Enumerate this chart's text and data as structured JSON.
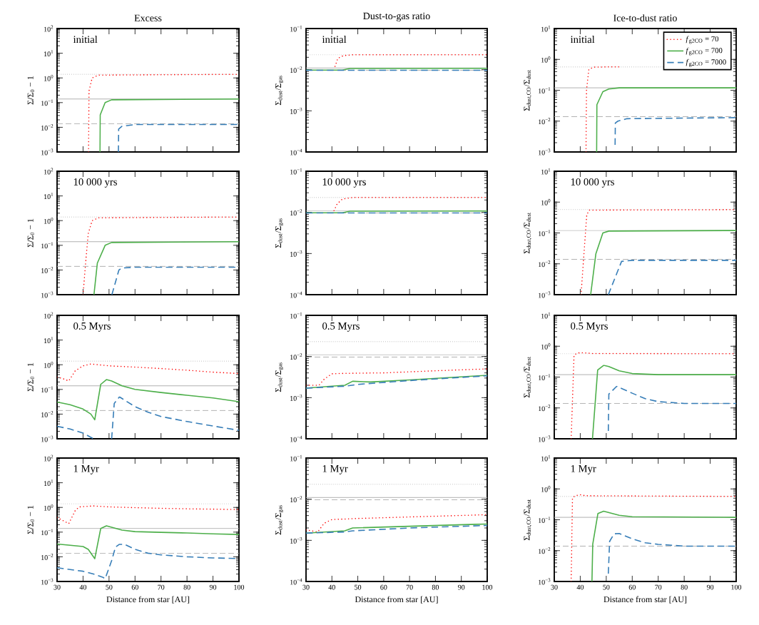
{
  "chart_data": [
    {
      "type": "line",
      "title": "Excess",
      "ylabel": "Σ/Σ$_{0}$ − 1",
      "annotations": [
        "initial"
      ],
      "log": "y",
      "tick_labels": "y",
      "xlim": [
        30,
        100
      ],
      "xticks": [
        30,
        40,
        50,
        60,
        70,
        80,
        90,
        100
      ],
      "ylim": [
        0.001,
        100
      ],
      "yticks": [
        {
          "value": 0.001,
          "label": "10$^{−3}$"
        },
        {
          "value": 0.01,
          "label": "10$^{−2}$"
        },
        {
          "value": 0.1,
          "label": "10$^{−1}$"
        },
        {
          "value": 1,
          "label": "10$^{0}$"
        },
        {
          "value": 10,
          "label": "10$^{1}$"
        },
        {
          "value": 100,
          "label": "10$^{2}$"
        }
      ],
      "ref_lines": [
        {
          "axis": "y",
          "value": 1.4,
          "color": "#aaaaaa",
          "line_style": "dotted"
        },
        {
          "axis": "y",
          "value": 0.14,
          "color": "#aaaaaa",
          "line_style": "solid"
        },
        {
          "axis": "y",
          "value": 0.014,
          "color": "#aaaaaa",
          "line_style": "dashed"
        }
      ],
      "series": [
        {
          "color": "#ff0000",
          "line_style": "dotted",
          "x": [
            42.1,
            42.3,
            43.5,
            46,
            100
          ],
          "values": [
            0.001,
            0.3,
            1.0,
            1.3,
            1.4
          ]
        },
        {
          "color": "#4daf4a",
          "line_style": "solid",
          "x": [
            46.5,
            46.6,
            48.5,
            51,
            100
          ],
          "values": [
            0.001,
            0.032,
            0.1,
            0.13,
            0.14
          ]
        },
        {
          "color": "#377eb8",
          "line_style": "dashed",
          "x": [
            53.6,
            53.7,
            55,
            60,
            100
          ],
          "values": [
            0.001,
            0.0085,
            0.011,
            0.013,
            0.013
          ]
        }
      ]
    },
    {
      "type": "line",
      "title": "Dust-to-gas ratio",
      "ylabel": "Σ$_{dust}$/Σ$_{gas}$",
      "annotations": [
        "initial"
      ],
      "log": "y",
      "tick_labels": "y",
      "xlim": [
        30,
        100
      ],
      "xticks": [
        30,
        40,
        50,
        60,
        70,
        80,
        90,
        100
      ],
      "ylim": [
        0.0001,
        0.1
      ],
      "yticks": [
        {
          "value": 0.0001,
          "label": "10$^{−4}$"
        },
        {
          "value": 0.001,
          "label": "10$^{−3}$"
        },
        {
          "value": 0.01,
          "label": "10$^{−2}$"
        },
        {
          "value": 0.1,
          "label": "10$^{−1}$"
        }
      ],
      "ref_lines": [
        {
          "axis": "y",
          "value": 0.023,
          "color": "#aaaaaa",
          "line_style": "dotted"
        },
        {
          "axis": "y",
          "value": 0.011,
          "color": "#aaaaaa",
          "line_style": "solid"
        },
        {
          "axis": "y",
          "value": 0.0097,
          "color": "#aaaaaa",
          "line_style": "dashed"
        }
      ],
      "series": [
        {
          "color": "#ff0000",
          "line_style": "dotted",
          "x": [
            41.2,
            42.3,
            44.5,
            48,
            100
          ],
          "values": [
            0.012,
            0.019,
            0.022,
            0.023,
            0.023
          ]
        },
        {
          "color": "#4daf4a",
          "line_style": "solid",
          "x": [
            30,
            44,
            47,
            100
          ],
          "values": [
            0.0098,
            0.0098,
            0.0107,
            0.0108
          ]
        },
        {
          "color": "#377eb8",
          "line_style": "dashed",
          "x": [
            30,
            100
          ],
          "values": [
            0.0097,
            0.0097
          ]
        }
      ]
    },
    {
      "type": "line",
      "title": "Ice-to-dust ratio",
      "ylabel": "Σ$_{dust,CO}$/Σ$_{dust}$",
      "annotations": [
        "initial"
      ],
      "log": "y",
      "tick_labels": "y",
      "legend": "top right",
      "xlim": [
        30,
        100
      ],
      "xticks": [
        30,
        40,
        50,
        60,
        70,
        80,
        90,
        100
      ],
      "ylim": [
        0.001,
        10
      ],
      "yticks": [
        {
          "value": 0.001,
          "label": "10$^{−3}$"
        },
        {
          "value": 0.01,
          "label": "10$^{−2}$"
        },
        {
          "value": 0.1,
          "label": "10$^{−1}$"
        },
        {
          "value": 1,
          "label": "10$^{0}$"
        },
        {
          "value": 10,
          "label": "10$^{1}$"
        }
      ],
      "ref_lines": [
        {
          "axis": "y",
          "value": 0.57,
          "color": "#aaaaaa",
          "line_style": "dotted"
        },
        {
          "axis": "y",
          "value": 0.12,
          "color": "#aaaaaa",
          "line_style": "solid"
        },
        {
          "axis": "y",
          "value": 0.014,
          "color": "#aaaaaa",
          "line_style": "dashed"
        }
      ],
      "series": [
        {
          "name": "*f*$_{g2CO}$ = 70",
          "color": "#ff0000",
          "line_style": "dotted",
          "x": [
            42.2,
            42.4,
            43.3,
            45,
            50,
            55
          ],
          "values": [
            0.001,
            0.1,
            0.47,
            0.56,
            0.57,
            0.57
          ]
        },
        {
          "name": "*f*$_{g2CO}$ = 700",
          "color": "#4daf4a",
          "line_style": "solid",
          "x": [
            46.3,
            46.4,
            48.7,
            51,
            55,
            100
          ],
          "values": [
            0.001,
            0.034,
            0.09,
            0.11,
            0.12,
            0.12
          ]
        },
        {
          "name": "*f*$_{g2CO}$ = 7000",
          "color": "#377eb8",
          "line_style": "dashed",
          "x": [
            53.4,
            53.5,
            54.5,
            58,
            100
          ],
          "values": [
            0.0017,
            0.0087,
            0.01,
            0.012,
            0.013
          ]
        }
      ]
    },
    {
      "type": "line",
      "ylabel": "Σ/Σ$_{0}$ − 1",
      "annotations": [
        "10 000 yrs"
      ],
      "log": "y",
      "tick_labels": "y",
      "xlim": [
        30,
        100
      ],
      "xticks": [
        30,
        40,
        50,
        60,
        70,
        80,
        90,
        100
      ],
      "ylim": [
        0.001,
        100
      ],
      "yticks": [
        {
          "value": 0.001,
          "label": "10$^{−3}$"
        },
        {
          "value": 0.01,
          "label": "10$^{−2}$"
        },
        {
          "value": 0.1,
          "label": "10$^{−1}$"
        },
        {
          "value": 1,
          "label": "10$^{0}$"
        },
        {
          "value": 10,
          "label": "10$^{1}$"
        },
        {
          "value": 100,
          "label": "10$^{2}$"
        }
      ],
      "ref_lines": [
        {
          "axis": "y",
          "value": 1.4,
          "color": "#aaaaaa",
          "line_style": "dotted"
        },
        {
          "axis": "y",
          "value": 0.14,
          "color": "#aaaaaa",
          "line_style": "solid"
        },
        {
          "axis": "y",
          "value": 0.014,
          "color": "#aaaaaa",
          "line_style": "dashed"
        }
      ],
      "series": [
        {
          "color": "#ff0000",
          "line_style": "dotted",
          "x": [
            40.0,
            41,
            42,
            43.5,
            46,
            100
          ],
          "values": [
            0.001,
            0.02,
            0.3,
            1.0,
            1.3,
            1.4
          ]
        },
        {
          "color": "#4daf4a",
          "line_style": "solid",
          "x": [
            44.2,
            45.5,
            48.5,
            51,
            100
          ],
          "values": [
            0.001,
            0.019,
            0.1,
            0.13,
            0.14
          ]
        },
        {
          "color": "#377eb8",
          "line_style": "dashed",
          "x": [
            51.1,
            53.8,
            55,
            60,
            100
          ],
          "values": [
            0.001,
            0.01,
            0.012,
            0.013,
            0.013
          ]
        }
      ]
    },
    {
      "type": "line",
      "ylabel": "Σ$_{dust}$/Σ$_{gas}$",
      "annotations": [
        "10 000 yrs"
      ],
      "log": "y",
      "tick_labels": "y",
      "xlim": [
        30,
        100
      ],
      "xticks": [
        30,
        40,
        50,
        60,
        70,
        80,
        90,
        100
      ],
      "ylim": [
        0.0001,
        0.1
      ],
      "yticks": [
        {
          "value": 0.0001,
          "label": "10$^{−4}$"
        },
        {
          "value": 0.001,
          "label": "10$^{−3}$"
        },
        {
          "value": 0.01,
          "label": "10$^{−2}$"
        },
        {
          "value": 0.1,
          "label": "10$^{−1}$"
        }
      ],
      "ref_lines": [
        {
          "axis": "y",
          "value": 0.023,
          "color": "#aaaaaa",
          "line_style": "dotted"
        },
        {
          "axis": "y",
          "value": 0.011,
          "color": "#aaaaaa",
          "line_style": "solid"
        },
        {
          "axis": "y",
          "value": 0.0097,
          "color": "#aaaaaa",
          "line_style": "dashed"
        }
      ],
      "series": [
        {
          "color": "#ff0000",
          "line_style": "dotted",
          "x": [
            40.8,
            42,
            44,
            48,
            100
          ],
          "values": [
            0.011,
            0.016,
            0.021,
            0.023,
            0.023
          ]
        },
        {
          "color": "#4daf4a",
          "line_style": "solid",
          "x": [
            30,
            44,
            47,
            100
          ],
          "values": [
            0.0098,
            0.0098,
            0.0107,
            0.0108
          ]
        },
        {
          "color": "#377eb8",
          "line_style": "dashed",
          "x": [
            30,
            100
          ],
          "values": [
            0.0097,
            0.0097
          ]
        }
      ]
    },
    {
      "type": "line",
      "ylabel": "Σ$_{dust,CO}$/Σ$_{dust}$",
      "annotations": [
        "10 000 yrs"
      ],
      "log": "y",
      "tick_labels": "y",
      "xlim": [
        30,
        100
      ],
      "xticks": [
        30,
        40,
        50,
        60,
        70,
        80,
        90,
        100
      ],
      "ylim": [
        0.001,
        10
      ],
      "yticks": [
        {
          "value": 0.001,
          "label": "10$^{−3}$"
        },
        {
          "value": 0.01,
          "label": "10$^{−2}$"
        },
        {
          "value": 0.1,
          "label": "10$^{−1}$"
        },
        {
          "value": 1,
          "label": "10$^{0}$"
        },
        {
          "value": 10,
          "label": "10$^{1}$"
        }
      ],
      "ref_lines": [
        {
          "axis": "y",
          "value": 0.57,
          "color": "#aaaaaa",
          "line_style": "dotted"
        },
        {
          "axis": "y",
          "value": 0.12,
          "color": "#aaaaaa",
          "line_style": "solid"
        },
        {
          "axis": "y",
          "value": 0.014,
          "color": "#aaaaaa",
          "line_style": "dashed"
        }
      ],
      "series": [
        {
          "color": "#ff0000",
          "line_style": "dotted",
          "x": [
            40.3,
            42.5,
            43.5,
            100
          ],
          "values": [
            0.001,
            0.39,
            0.55,
            0.57
          ]
        },
        {
          "color": "#4daf4a",
          "line_style": "solid",
          "x": [
            44.0,
            46,
            48.7,
            51,
            100
          ],
          "values": [
            0.001,
            0.021,
            0.1,
            0.115,
            0.12
          ]
        },
        {
          "color": "#377eb8",
          "line_style": "dashed",
          "x": [
            50.8,
            55.9,
            60,
            100
          ],
          "values": [
            0.001,
            0.012,
            0.013,
            0.013
          ]
        }
      ]
    },
    {
      "type": "line",
      "ylabel": "Σ/Σ$_{0}$ − 1",
      "annotations": [
        "0.5 Myrs"
      ],
      "log": "y",
      "tick_labels": "y",
      "xlim": [
        30,
        100
      ],
      "xticks": [
        30,
        40,
        50,
        60,
        70,
        80,
        90,
        100
      ],
      "ylim": [
        0.001,
        100
      ],
      "yticks": [
        {
          "value": 0.001,
          "label": "10$^{−3}$"
        },
        {
          "value": 0.01,
          "label": "10$^{−2}$"
        },
        {
          "value": 0.1,
          "label": "10$^{−1}$"
        },
        {
          "value": 1,
          "label": "10$^{0}$"
        },
        {
          "value": 10,
          "label": "10$^{1}$"
        },
        {
          "value": 100,
          "label": "10$^{2}$"
        }
      ],
      "ref_lines": [
        {
          "axis": "y",
          "value": 1.4,
          "color": "#aaaaaa",
          "line_style": "dotted"
        },
        {
          "axis": "y",
          "value": 0.14,
          "color": "#aaaaaa",
          "line_style": "solid"
        },
        {
          "axis": "y",
          "value": 0.014,
          "color": "#aaaaaa",
          "line_style": "dashed"
        }
      ],
      "series": [
        {
          "color": "#ff0000",
          "line_style": "dotted",
          "x": [
            30,
            32,
            34.5,
            37,
            40,
            43,
            50,
            60,
            70,
            80,
            90,
            100
          ],
          "values": [
            0.31,
            0.28,
            0.22,
            0.57,
            0.9,
            1.07,
            0.9,
            0.8,
            0.7,
            0.6,
            0.5,
            0.44
          ]
        },
        {
          "color": "#4daf4a",
          "line_style": "solid",
          "x": [
            30,
            35,
            40,
            43,
            44.5,
            46.8,
            49,
            51,
            55,
            60,
            70,
            80,
            90,
            100
          ],
          "values": [
            0.031,
            0.024,
            0.016,
            0.01,
            0.0059,
            0.16,
            0.25,
            0.22,
            0.14,
            0.1,
            0.075,
            0.058,
            0.045,
            0.032
          ]
        },
        {
          "color": "#377eb8",
          "line_style": "dashed",
          "x": [
            30,
            35,
            40,
            44,
            47,
            51,
            52,
            54,
            60,
            65,
            70,
            80,
            90,
            100
          ],
          "values": [
            0.0032,
            0.0025,
            0.0017,
            0.001,
            null,
            0.001,
            0.027,
            0.05,
            0.02,
            0.012,
            0.008,
            0.005,
            0.0033,
            0.0022
          ]
        }
      ]
    },
    {
      "type": "line",
      "ylabel": "Σ$_{dust}$/Σ$_{gas}$",
      "annotations": [
        "0.5 Myrs"
      ],
      "log": "y",
      "tick_labels": "y",
      "xlim": [
        30,
        100
      ],
      "xticks": [
        30,
        40,
        50,
        60,
        70,
        80,
        90,
        100
      ],
      "ylim": [
        0.0001,
        0.1
      ],
      "yticks": [
        {
          "value": 0.0001,
          "label": "10$^{−4}$"
        },
        {
          "value": 0.001,
          "label": "10$^{−3}$"
        },
        {
          "value": 0.01,
          "label": "10$^{−2}$"
        },
        {
          "value": 0.1,
          "label": "10$^{−1}$"
        }
      ],
      "ref_lines": [
        {
          "axis": "y",
          "value": 0.023,
          "color": "#aaaaaa",
          "line_style": "dotted"
        },
        {
          "axis": "y",
          "value": 0.011,
          "color": "#aaaaaa",
          "line_style": "solid"
        },
        {
          "axis": "y",
          "value": 0.0097,
          "color": "#aaaaaa",
          "line_style": "dashed"
        }
      ],
      "series": [
        {
          "color": "#ff0000",
          "line_style": "dotted",
          "x": [
            30,
            35,
            37,
            40,
            45,
            60,
            80,
            100
          ],
          "values": [
            0.002,
            0.002,
            0.0028,
            0.0038,
            0.0039,
            0.004,
            0.0045,
            0.005
          ]
        },
        {
          "color": "#4daf4a",
          "line_style": "solid",
          "x": [
            30,
            40,
            45,
            48,
            55,
            70,
            100
          ],
          "values": [
            0.0017,
            0.0019,
            0.002,
            0.0025,
            0.0024,
            0.0027,
            0.0035
          ]
        },
        {
          "color": "#377eb8",
          "line_style": "dashed",
          "x": [
            30,
            45,
            50,
            70,
            100
          ],
          "values": [
            0.0017,
            0.0019,
            0.0021,
            0.0026,
            0.0034
          ]
        }
      ]
    },
    {
      "type": "line",
      "ylabel": "Σ$_{dust,CO}$/Σ$_{dust}$",
      "annotations": [
        "0.5 Myrs"
      ],
      "log": "y",
      "tick_labels": "y",
      "xlim": [
        30,
        100
      ],
      "xticks": [
        30,
        40,
        50,
        60,
        70,
        80,
        90,
        100
      ],
      "ylim": [
        0.001,
        10
      ],
      "yticks": [
        {
          "value": 0.001,
          "label": "10$^{−3}$"
        },
        {
          "value": 0.01,
          "label": "10$^{−2}$"
        },
        {
          "value": 0.1,
          "label": "10$^{−1}$"
        },
        {
          "value": 1,
          "label": "10$^{0}$"
        },
        {
          "value": 10,
          "label": "10$^{1}$"
        }
      ],
      "ref_lines": [
        {
          "axis": "y",
          "value": 0.57,
          "color": "#aaaaaa",
          "line_style": "dotted"
        },
        {
          "axis": "y",
          "value": 0.12,
          "color": "#aaaaaa",
          "line_style": "solid"
        },
        {
          "axis": "y",
          "value": 0.014,
          "color": "#aaaaaa",
          "line_style": "dashed"
        }
      ],
      "series": [
        {
          "color": "#ff0000",
          "line_style": "dotted",
          "x": [
            36.5,
            37.6,
            38.5,
            40,
            45,
            100
          ],
          "values": [
            0.001,
            0.5,
            0.58,
            0.62,
            0.58,
            0.57
          ]
        },
        {
          "color": "#4daf4a",
          "line_style": "solid",
          "x": [
            44.7,
            46.7,
            49,
            51,
            55,
            60,
            70,
            100
          ],
          "values": [
            0.001,
            0.17,
            0.24,
            0.22,
            0.16,
            0.13,
            0.12,
            0.12
          ]
        },
        {
          "color": "#377eb8",
          "line_style": "dashed",
          "x": [
            50.8,
            51,
            54,
            60,
            65,
            70,
            80,
            100
          ],
          "values": [
            0.0018,
            0.028,
            0.05,
            0.03,
            0.02,
            0.016,
            0.014,
            0.014
          ]
        }
      ]
    },
    {
      "type": "line",
      "xlabel": "Distance from star [AU]",
      "ylabel": "Σ/Σ$_{0}$ − 1",
      "annotations": [
        "1 Myr"
      ],
      "log": "y",
      "xlim": [
        30,
        100
      ],
      "xticks": [
        30,
        40,
        50,
        60,
        70,
        80,
        90,
        100
      ],
      "ylim": [
        0.001,
        100
      ],
      "yticks": [
        {
          "value": 0.001,
          "label": "10$^{−3}$"
        },
        {
          "value": 0.01,
          "label": "10$^{−2}$"
        },
        {
          "value": 0.1,
          "label": "10$^{−1}$"
        },
        {
          "value": 1,
          "label": "10$^{0}$"
        },
        {
          "value": 10,
          "label": "10$^{1}$"
        },
        {
          "value": 100,
          "label": "10$^{2}$"
        }
      ],
      "ref_lines": [
        {
          "axis": "y",
          "value": 1.4,
          "color": "#aaaaaa",
          "line_style": "dotted"
        },
        {
          "axis": "y",
          "value": 0.14,
          "color": "#aaaaaa",
          "line_style": "solid"
        },
        {
          "axis": "y",
          "value": 0.014,
          "color": "#aaaaaa",
          "line_style": "dashed"
        }
      ],
      "series": [
        {
          "color": "#ff0000",
          "line_style": "dotted",
          "x": [
            30,
            34.5,
            37,
            38.5,
            44,
            50,
            60,
            70,
            80,
            90,
            100
          ],
          "values": [
            0.39,
            0.22,
            0.75,
            1.05,
            1.15,
            1.05,
            0.98,
            0.92,
            0.88,
            0.85,
            0.82
          ]
        },
        {
          "color": "#4daf4a",
          "line_style": "solid",
          "x": [
            30,
            40,
            42,
            44.5,
            46.8,
            49,
            55,
            60,
            70,
            80,
            90,
            100
          ],
          "values": [
            0.033,
            0.026,
            0.02,
            0.0084,
            0.14,
            0.18,
            0.12,
            0.105,
            0.098,
            0.092,
            0.085,
            0.08
          ]
        },
        {
          "color": "#377eb8",
          "line_style": "dashed",
          "x": [
            30,
            40,
            44,
            47.5,
            48.5,
            51,
            52.5,
            54,
            56,
            60,
            65,
            70,
            80,
            90,
            100
          ],
          "values": [
            0.0036,
            0.0026,
            0.002,
            0.0015,
            0.0013,
            0.007,
            0.025,
            0.032,
            0.032,
            0.02,
            0.014,
            0.012,
            0.01,
            0.009,
            0.0085
          ]
        }
      ]
    },
    {
      "type": "line",
      "xlabel": "Distance from star [AU]",
      "ylabel": "Σ$_{dust}$/Σ$_{gas}$",
      "annotations": [
        "1 Myr"
      ],
      "log": "y",
      "xlim": [
        30,
        100
      ],
      "xticks": [
        30,
        40,
        50,
        60,
        70,
        80,
        90,
        100
      ],
      "ylim": [
        0.0001,
        0.1
      ],
      "yticks": [
        {
          "value": 0.0001,
          "label": "10$^{−4}$"
        },
        {
          "value": 0.001,
          "label": "10$^{−3}$"
        },
        {
          "value": 0.01,
          "label": "10$^{−2}$"
        },
        {
          "value": 0.1,
          "label": "10$^{−1}$"
        }
      ],
      "ref_lines": [
        {
          "axis": "y",
          "value": 0.023,
          "color": "#aaaaaa",
          "line_style": "dotted"
        },
        {
          "axis": "y",
          "value": 0.011,
          "color": "#aaaaaa",
          "line_style": "solid"
        },
        {
          "axis": "y",
          "value": 0.0097,
          "color": "#aaaaaa",
          "line_style": "dashed"
        }
      ],
      "series": [
        {
          "color": "#ff0000",
          "line_style": "dotted",
          "x": [
            30,
            34.5,
            37,
            40,
            50,
            70,
            100
          ],
          "values": [
            0.0018,
            0.0016,
            0.0026,
            0.0032,
            0.0034,
            0.0037,
            0.0042
          ]
        },
        {
          "color": "#4daf4a",
          "line_style": "solid",
          "x": [
            30,
            45,
            48,
            70,
            100
          ],
          "values": [
            0.0015,
            0.0017,
            0.002,
            0.0022,
            0.0025
          ]
        },
        {
          "color": "#377eb8",
          "line_style": "dashed",
          "x": [
            30,
            45,
            48,
            70,
            100
          ],
          "values": [
            0.0015,
            0.0016,
            0.0017,
            0.002,
            0.0023
          ]
        }
      ]
    },
    {
      "type": "line",
      "xlabel": "Distance from star [AU]",
      "ylabel": "Σ$_{dust,CO}$/Σ$_{dust}$",
      "annotations": [
        "1 Myr"
      ],
      "log": "y",
      "xlim": [
        30,
        100
      ],
      "xticks": [
        30,
        40,
        50,
        60,
        70,
        80,
        90,
        100
      ],
      "ylim": [
        0.001,
        10
      ],
      "yticks": [
        {
          "value": 0.001,
          "label": "10$^{−3}$"
        },
        {
          "value": 0.01,
          "label": "10$^{−2}$"
        },
        {
          "value": 0.1,
          "label": "10$^{−1}$"
        },
        {
          "value": 1,
          "label": "10$^{0}$"
        },
        {
          "value": 10,
          "label": "10$^{1}$"
        }
      ],
      "ref_lines": [
        {
          "axis": "y",
          "value": 0.57,
          "color": "#aaaaaa",
          "line_style": "dotted"
        },
        {
          "axis": "y",
          "value": 0.12,
          "color": "#aaaaaa",
          "line_style": "solid"
        },
        {
          "axis": "y",
          "value": 0.014,
          "color": "#aaaaaa",
          "line_style": "dashed"
        }
      ],
      "series": [
        {
          "color": "#ff0000",
          "line_style": "dotted",
          "x": [
            36.5,
            37,
            38,
            40,
            42,
            100
          ],
          "values": [
            0.001,
            0.5,
            0.6,
            0.65,
            0.6,
            0.57
          ]
        },
        {
          "color": "#4daf4a",
          "line_style": "solid",
          "x": [
            44.5,
            44.8,
            46.8,
            49,
            55,
            60,
            100
          ],
          "values": [
            0.001,
            0.016,
            0.16,
            0.19,
            0.14,
            0.125,
            0.12
          ]
        },
        {
          "color": "#377eb8",
          "line_style": "dashed",
          "x": [
            50.8,
            51.3,
            53,
            55,
            60,
            65,
            70,
            80,
            100
          ],
          "values": [
            0.0018,
            0.02,
            0.035,
            0.036,
            0.024,
            0.018,
            0.016,
            0.014,
            0.014
          ]
        }
      ]
    }
  ]
}
